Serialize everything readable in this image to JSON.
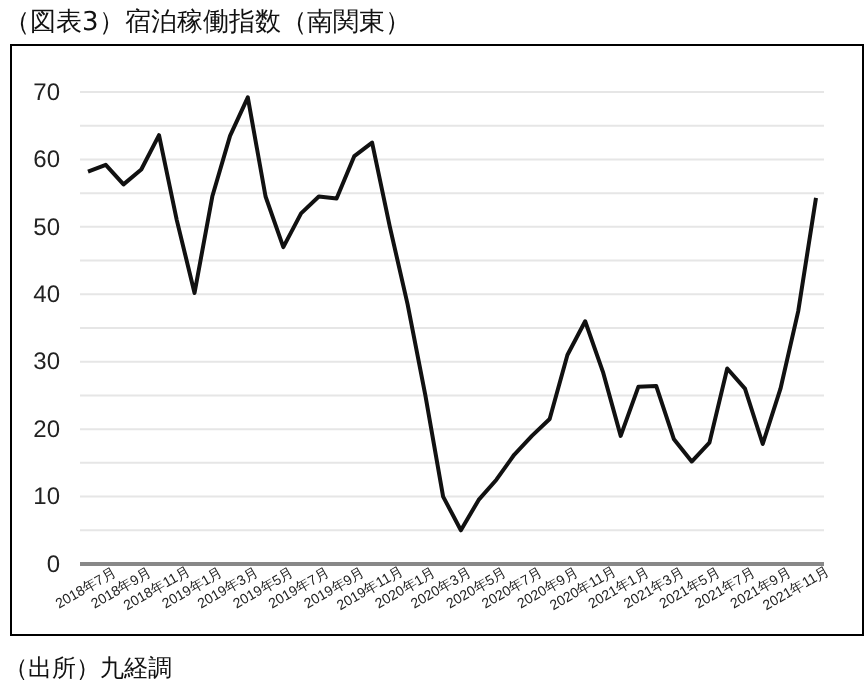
{
  "chart_data": {
    "type": "line",
    "title": "（図表3）宿泊稼働指数（南関東）",
    "categories": [
      "2018年7月",
      null,
      "2018年9月",
      null,
      "2018年11月",
      null,
      "2019年1月",
      null,
      "2019年3月",
      null,
      "2019年5月",
      null,
      "2019年7月",
      null,
      "2019年9月",
      null,
      "2019年11月",
      null,
      "2020年1月",
      null,
      "2020年3月",
      null,
      "2020年5月",
      null,
      "2020年7月",
      null,
      "2020年9月",
      null,
      "2020年11月",
      null,
      "2021年1月",
      null,
      "2021年3月",
      null,
      "2021年5月",
      null,
      "2021年7月",
      null,
      "2021年9月",
      null,
      "2021年11月",
      null
    ],
    "series": [
      {
        "color": "#111111",
        "values": [
          58.2,
          59.2,
          56.3,
          58.5,
          63.6,
          51,
          40.2,
          54.5,
          63.5,
          69.2,
          54.5,
          47,
          52,
          54.5,
          54.2,
          60.5,
          62.5,
          50,
          38.5,
          25,
          10,
          5,
          9.5,
          12.5,
          16.2,
          19,
          21.5,
          31,
          36,
          28.5,
          19,
          26.3,
          26.4,
          18.5,
          15.2,
          18,
          29,
          26,
          17.8,
          26,
          37.5,
          54.3
        ]
      }
    ],
    "ylim": [
      0,
      70
    ],
    "yticks": [
      0,
      {
        "value": 5,
        "label": null
      },
      10,
      {
        "value": 15,
        "label": null
      },
      20,
      {
        "value": 25,
        "label": null
      },
      30,
      {
        "value": 35,
        "label": null
      },
      40,
      {
        "value": 45,
        "label": null
      },
      50,
      {
        "value": 55,
        "label": null
      },
      60,
      {
        "value": 65,
        "label": null
      },
      70
    ],
    "grid": "y",
    "marker": "none",
    "line_style": "solid",
    "annotations": [
      "（出所）九経調"
    ]
  }
}
